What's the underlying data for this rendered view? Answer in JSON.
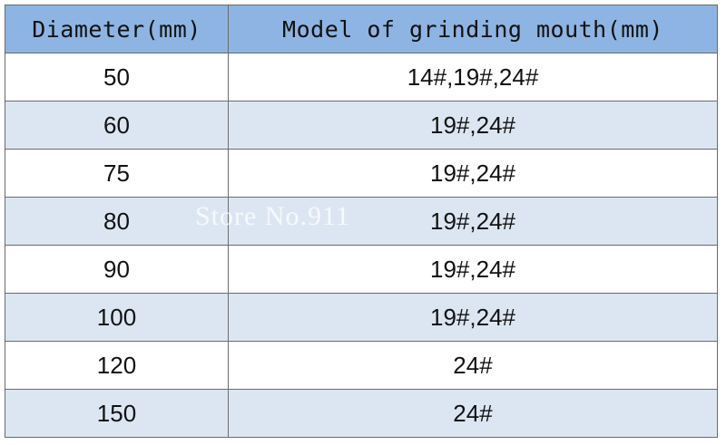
{
  "table": {
    "headers": {
      "diameter": "Diameter(mm)",
      "model": "Model of grinding mouth(mm)"
    },
    "rows": [
      {
        "diameter": "50",
        "model": "14#,19#,24#"
      },
      {
        "diameter": "60",
        "model": "19#,24#"
      },
      {
        "diameter": "75",
        "model": "19#,24#"
      },
      {
        "diameter": "80",
        "model": "19#,24#"
      },
      {
        "diameter": "90",
        "model": "19#,24#"
      },
      {
        "diameter": "100",
        "model": "19#,24#"
      },
      {
        "diameter": "120",
        "model": "24#"
      },
      {
        "diameter": "150",
        "model": "24#"
      }
    ]
  },
  "watermark": "Store No.911",
  "colors": {
    "header_bg": "#8db4e2",
    "stripe_bg": "#dce6f2",
    "border": "#6b6b6b"
  }
}
